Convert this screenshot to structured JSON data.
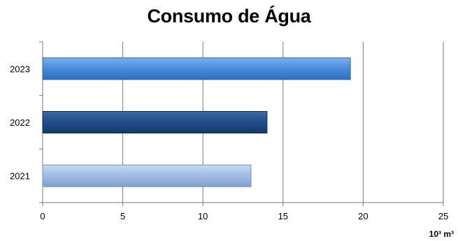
{
  "chart_data": {
    "type": "bar",
    "orientation": "horizontal",
    "title": "Consumo de Água",
    "xlabel": "10³ m³",
    "ylabel": "",
    "categories": [
      "2021",
      "2022",
      "2023"
    ],
    "values": [
      13,
      14,
      19.2
    ],
    "xlim": [
      0,
      25
    ],
    "xticks": [
      0,
      5,
      10,
      15,
      20,
      25
    ],
    "grid": "vertical",
    "legend": "none",
    "colors": [
      "#9db9e3",
      "#1f4e8c",
      "#4a8fdc"
    ]
  }
}
